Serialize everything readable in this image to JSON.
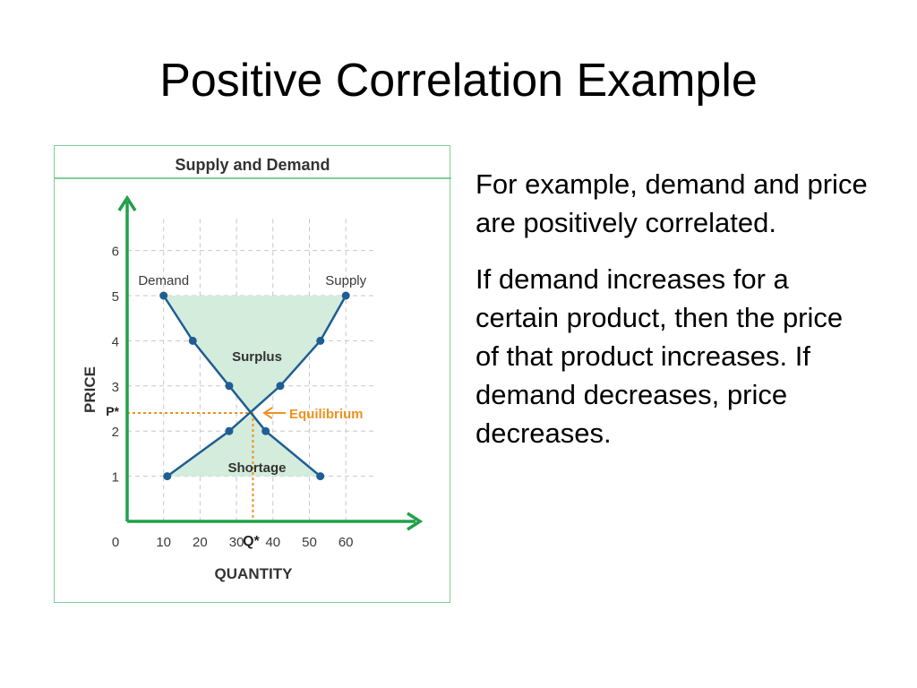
{
  "slide": {
    "title": "Positive Correlation Example",
    "paragraphs": [
      "For example, demand and price are positively correlated.",
      "If demand increases for a certain product, then the price of that product increases. If demand decreases, price decreases."
    ]
  },
  "colors": {
    "axis": "#22a04b",
    "curve": "#1f5e93",
    "shade": "#d3ecdc",
    "grid": "#c8c8c8",
    "equilibrium": "#f0921e",
    "frame": "#7fcf9a",
    "text": "#3a3a3a"
  },
  "chart_data": {
    "type": "line",
    "title": "Supply and Demand",
    "xlabel": "QUANTITY",
    "ylabel": "PRICE",
    "xlim": [
      0,
      70
    ],
    "ylim": [
      0,
      6.7
    ],
    "x_ticks": [
      "0",
      "10",
      "20",
      "30",
      "40",
      "50",
      "60"
    ],
    "y_ticks": [
      "1",
      "2",
      "3",
      "4",
      "5",
      "6"
    ],
    "grid": true,
    "series": [
      {
        "name": "Demand",
        "points": [
          [
            10,
            5
          ],
          [
            18,
            4
          ],
          [
            28,
            3
          ],
          [
            38,
            2
          ],
          [
            53,
            1
          ]
        ]
      },
      {
        "name": "Supply",
        "points": [
          [
            11,
            1
          ],
          [
            28,
            2
          ],
          [
            42,
            3
          ],
          [
            53,
            4
          ],
          [
            60,
            5
          ]
        ]
      }
    ],
    "regions": [
      {
        "label": "Surplus"
      },
      {
        "label": "Shortage"
      }
    ],
    "equilibrium": {
      "label": "Equilibrium",
      "price_label": "P*",
      "quantity_label": "Q*",
      "quantity": 34.5,
      "price": 2.4
    }
  }
}
